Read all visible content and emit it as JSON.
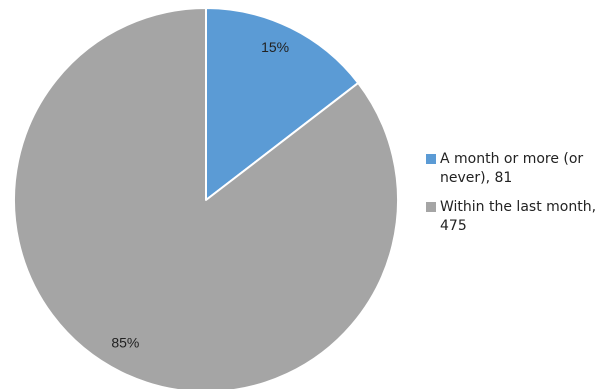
{
  "chart_data": {
    "type": "pie",
    "title": "",
    "slices": [
      {
        "label": "A month or more (or never), 81",
        "value": 81,
        "percent_label": "15%",
        "color": "#5b9bd5"
      },
      {
        "label": "Within the last month, 475",
        "value": 475,
        "percent_label": "85%",
        "color": "#a5a5a5"
      }
    ],
    "legend_position": "right",
    "start_angle_deg": 0,
    "direction": "clockwise"
  }
}
